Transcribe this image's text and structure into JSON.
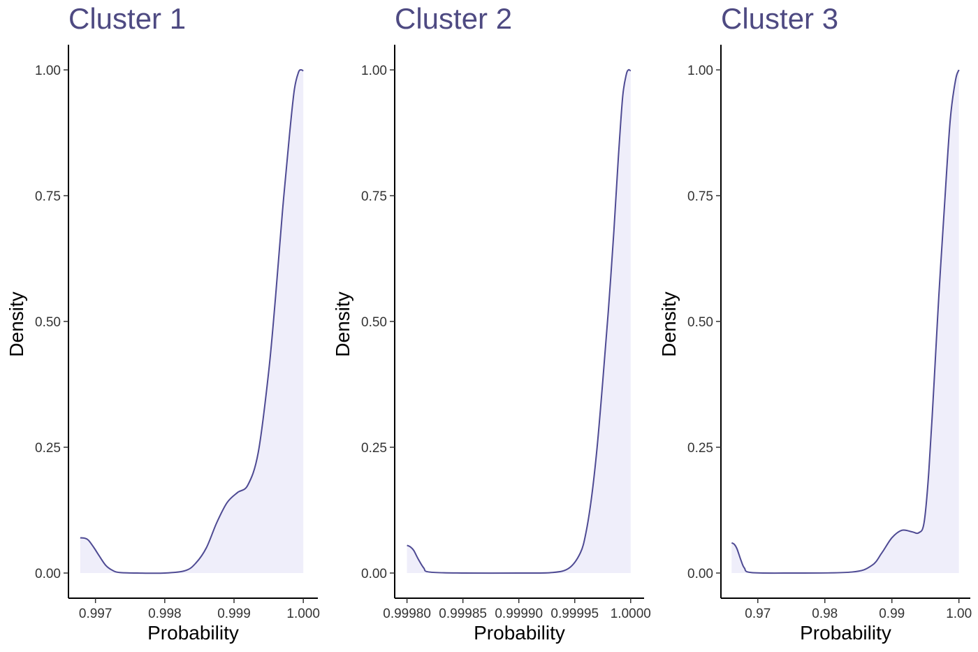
{
  "colors": {
    "line": "#4e4a93",
    "fill": "#efeefa",
    "title": "#4e4a82",
    "axis": "#000000"
  },
  "chart_data": [
    {
      "type": "area",
      "title": "Cluster 1",
      "xlabel": "Probability",
      "ylabel": "Density",
      "xlim": [
        0.99661,
        1.00021
      ],
      "ylim": [
        -0.05,
        1.05
      ],
      "x_ticks": [
        0.997,
        0.998,
        0.999,
        1.0
      ],
      "x_tick_labels": [
        "0.997",
        "0.998",
        "0.999",
        "1.000"
      ],
      "y_ticks": [
        0,
        0.25,
        0.5,
        0.75,
        1.0
      ],
      "y_tick_labels": [
        "0.00",
        "0.25",
        "0.50",
        "0.75",
        "1.00"
      ],
      "grid": false,
      "x": [
        0.99678,
        0.99685,
        0.9969,
        0.99698,
        0.99705,
        0.99715,
        0.99725,
        0.99735,
        0.9976,
        0.998,
        0.9983,
        0.99845,
        0.9986,
        0.99875,
        0.9989,
        0.99905,
        0.9992,
        0.99935,
        0.9995,
        0.9996,
        0.9997,
        0.9998,
        0.99987,
        0.99993,
        0.99997,
        1.0
      ],
      "y": [
        0.07,
        0.069,
        0.065,
        0.05,
        0.035,
        0.015,
        0.005,
        0.001,
        0.0,
        0.0,
        0.005,
        0.02,
        0.05,
        0.1,
        0.14,
        0.16,
        0.175,
        0.24,
        0.4,
        0.55,
        0.72,
        0.87,
        0.96,
        0.995,
        1.0,
        0.998
      ]
    },
    {
      "type": "area",
      "title": "Cluster 2",
      "xlabel": "Probability",
      "ylabel": "Density",
      "xlim": [
        0.999789,
        1.000012
      ],
      "ylim": [
        -0.05,
        1.05
      ],
      "x_ticks": [
        0.9998,
        0.99985,
        0.9999,
        0.99995,
        1.0
      ],
      "x_tick_labels": [
        "0.99980",
        "0.99985",
        "0.99990",
        "0.99995",
        "1.0000"
      ],
      "y_ticks": [
        0,
        0.25,
        0.5,
        0.75,
        1.0
      ],
      "y_tick_labels": [
        "0.00",
        "0.25",
        "0.50",
        "0.75",
        "1.00"
      ],
      "grid": false,
      "x": [
        0.9998,
        0.999803,
        0.999806,
        0.99981,
        0.999815,
        0.99982,
        0.99985,
        0.9999,
        0.99993,
        0.999945,
        0.999955,
        0.99996,
        0.999965,
        0.99997,
        0.999975,
        0.99998,
        0.999985,
        0.999988,
        0.99999,
        0.999993,
        0.999996,
        0.999998,
        1.0
      ],
      "y": [
        0.055,
        0.052,
        0.045,
        0.028,
        0.01,
        0.002,
        0.0,
        0.0,
        0.001,
        0.01,
        0.04,
        0.08,
        0.15,
        0.25,
        0.38,
        0.52,
        0.68,
        0.79,
        0.86,
        0.95,
        0.99,
        1.0,
        0.998
      ]
    },
    {
      "type": "area",
      "title": "Cluster 3",
      "xlabel": "Probability",
      "ylabel": "Density",
      "xlim": [
        0.9645,
        1.0017
      ],
      "ylim": [
        -0.05,
        1.05
      ],
      "x_ticks": [
        0.97,
        0.98,
        0.99,
        1.0
      ],
      "x_tick_labels": [
        "0.97",
        "0.98",
        "0.99",
        "1.00"
      ],
      "y_ticks": [
        0,
        0.25,
        0.5,
        0.75,
        1.0
      ],
      "y_tick_labels": [
        "0.00",
        "0.25",
        "0.50",
        "0.75",
        "1.00"
      ],
      "grid": false,
      "x": [
        0.9661,
        0.9665,
        0.9669,
        0.9675,
        0.968,
        0.969,
        0.975,
        0.984,
        0.987,
        0.9885,
        0.99,
        0.9915,
        0.993,
        0.994,
        0.9948,
        0.9955,
        0.9963,
        0.997,
        0.9978,
        0.9987,
        0.9995,
        1.0
      ],
      "y": [
        0.06,
        0.057,
        0.048,
        0.025,
        0.01,
        0.001,
        0.0,
        0.002,
        0.015,
        0.04,
        0.07,
        0.085,
        0.082,
        0.08,
        0.1,
        0.2,
        0.38,
        0.55,
        0.72,
        0.9,
        0.98,
        1.0
      ]
    }
  ]
}
